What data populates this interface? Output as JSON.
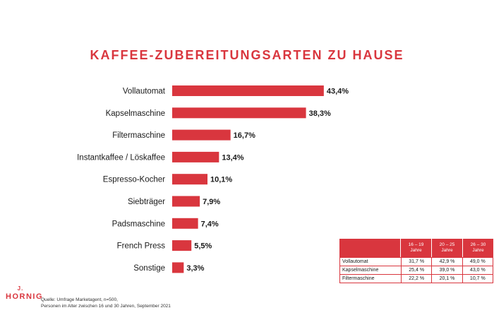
{
  "title": "KAFFEE-ZUBEREITUNGSARTEN ZU HAUSE",
  "colors": {
    "accent": "#d9363e",
    "text": "#1a1a1a"
  },
  "chart_data": {
    "type": "bar",
    "orientation": "horizontal",
    "title": "KAFFEE-ZUBEREITUNGSARTEN ZU HAUSE",
    "categories": [
      "Vollautomat",
      "Kapselmaschine",
      "Filtermaschine",
      "Instantkaffee / Löskaffee",
      "Espresso-Kocher",
      "Siebträger",
      "Padsmaschine",
      "French Press",
      "Sonstige"
    ],
    "values": [
      43.4,
      38.3,
      16.7,
      13.4,
      10.1,
      7.9,
      7.4,
      5.5,
      3.3
    ],
    "value_labels": [
      "43,4%",
      "38,3%",
      "16,7%",
      "13,4%",
      "10,1%",
      "7,9%",
      "7,4%",
      "5,5%",
      "3,3%"
    ],
    "unit": "%",
    "bar_color": "#d9363e"
  },
  "table": {
    "headers": [
      {
        "range": "16 – 19",
        "label": "Jahre"
      },
      {
        "range": "20 – 25",
        "label": "Jahre"
      },
      {
        "range": "26 – 30",
        "label": "Jahre"
      }
    ],
    "rows": [
      {
        "label": "Vollautomat",
        "values": [
          "31,7 %",
          "42,9 %",
          "49,0 %"
        ]
      },
      {
        "label": "Kapselmaschine",
        "values": [
          "25,4 %",
          "39,0 %",
          "43,0 %"
        ]
      },
      {
        "label": "Filtermaschine",
        "values": [
          "22,2 %",
          "20,1 %",
          "10,7 %"
        ]
      }
    ]
  },
  "logo": {
    "initial": "J.",
    "name": "HORNIG"
  },
  "source": {
    "line1": "Quelle: Umfrage Marketagent, n=500,",
    "line2": "Personen im Alter zwischen 16 und 30 Jahren, September 2021"
  }
}
